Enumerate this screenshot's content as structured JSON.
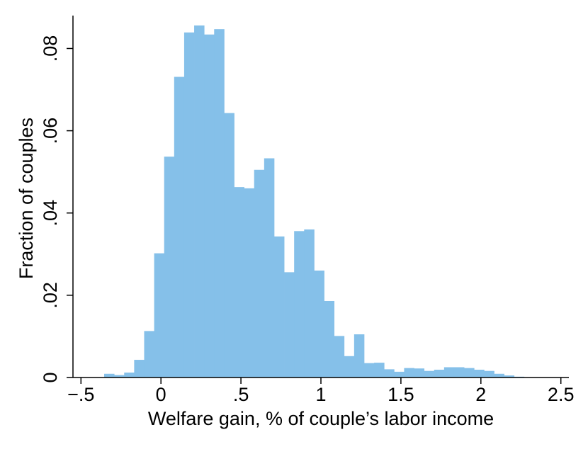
{
  "chart_data": {
    "type": "bar",
    "xlabel": "Welfare gain, % of couple’s labor income",
    "ylabel": "Fraction of couples",
    "xlim": [
      -0.55,
      2.55
    ],
    "ylim": [
      0,
      0.088
    ],
    "bin_width": 0.0625,
    "x_ticks": [
      -0.5,
      0,
      0.5,
      1,
      1.5,
      2,
      2.5
    ],
    "x_tick_labels": [
      "−.5",
      "0",
      ".5",
      "1",
      "1.5",
      "2",
      "2.5"
    ],
    "y_ticks": [
      0,
      0.02,
      0.04,
      0.06,
      0.08
    ],
    "y_tick_labels": [
      "0",
      ".02",
      ".04",
      ".06",
      ".08"
    ],
    "bar_color": "#85c0e9",
    "grid": false,
    "bins": [
      {
        "x0": -0.355,
        "value": 0.0009
      },
      {
        "x0": -0.2925,
        "value": 0.0006
      },
      {
        "x0": -0.23,
        "value": 0.0012
      },
      {
        "x0": -0.1675,
        "value": 0.0043
      },
      {
        "x0": -0.105,
        "value": 0.0113
      },
      {
        "x0": -0.0425,
        "value": 0.0302
      },
      {
        "x0": 0.02,
        "value": 0.0537
      },
      {
        "x0": 0.0825,
        "value": 0.0731
      },
      {
        "x0": 0.145,
        "value": 0.0839
      },
      {
        "x0": 0.2075,
        "value": 0.0856
      },
      {
        "x0": 0.27,
        "value": 0.0834
      },
      {
        "x0": 0.3325,
        "value": 0.0847
      },
      {
        "x0": 0.395,
        "value": 0.0643
      },
      {
        "x0": 0.4575,
        "value": 0.0463
      },
      {
        "x0": 0.52,
        "value": 0.046
      },
      {
        "x0": 0.5825,
        "value": 0.0505
      },
      {
        "x0": 0.645,
        "value": 0.0533
      },
      {
        "x0": 0.7075,
        "value": 0.0343
      },
      {
        "x0": 0.77,
        "value": 0.0256
      },
      {
        "x0": 0.8325,
        "value": 0.0356
      },
      {
        "x0": 0.895,
        "value": 0.036
      },
      {
        "x0": 0.9575,
        "value": 0.026
      },
      {
        "x0": 1.02,
        "value": 0.0186
      },
      {
        "x0": 1.0825,
        "value": 0.0101
      },
      {
        "x0": 1.145,
        "value": 0.0052
      },
      {
        "x0": 1.2075,
        "value": 0.0105
      },
      {
        "x0": 1.27,
        "value": 0.0035
      },
      {
        "x0": 1.3325,
        "value": 0.0036
      },
      {
        "x0": 1.395,
        "value": 0.002
      },
      {
        "x0": 1.4575,
        "value": 0.0014
      },
      {
        "x0": 1.52,
        "value": 0.0023
      },
      {
        "x0": 1.5825,
        "value": 0.0022
      },
      {
        "x0": 1.645,
        "value": 0.0016
      },
      {
        "x0": 1.7075,
        "value": 0.0019
      },
      {
        "x0": 1.77,
        "value": 0.0025
      },
      {
        "x0": 1.8325,
        "value": 0.0025
      },
      {
        "x0": 1.895,
        "value": 0.0023
      },
      {
        "x0": 1.9575,
        "value": 0.0019
      },
      {
        "x0": 2.02,
        "value": 0.0016
      },
      {
        "x0": 2.0825,
        "value": 0.0009
      },
      {
        "x0": 2.145,
        "value": 0.0005
      },
      {
        "x0": 2.2075,
        "value": 0.0002
      }
    ]
  }
}
